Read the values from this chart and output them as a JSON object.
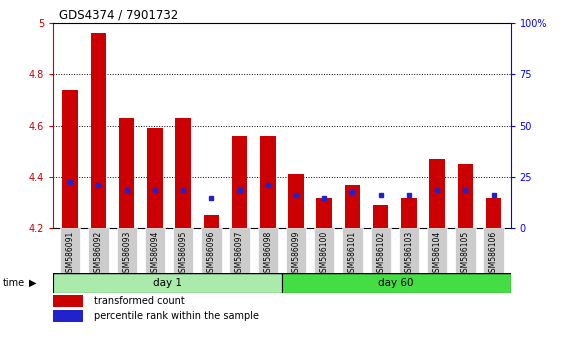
{
  "title": "GDS4374 / 7901732",
  "samples": [
    "GSM586091",
    "GSM586092",
    "GSM586093",
    "GSM586094",
    "GSM586095",
    "GSM586096",
    "GSM586097",
    "GSM586098",
    "GSM586099",
    "GSM586100",
    "GSM586101",
    "GSM586102",
    "GSM586103",
    "GSM586104",
    "GSM586105",
    "GSM586106"
  ],
  "red_values": [
    4.74,
    4.96,
    4.63,
    4.59,
    4.63,
    4.25,
    4.56,
    4.56,
    4.41,
    4.32,
    4.37,
    4.29,
    4.32,
    4.47,
    4.45,
    4.32
  ],
  "blue_values": [
    4.38,
    4.37,
    4.35,
    4.35,
    4.35,
    4.32,
    4.35,
    4.37,
    4.33,
    4.32,
    4.34,
    4.33,
    4.33,
    4.35,
    4.35,
    4.33
  ],
  "day1_samples": 8,
  "day60_samples": 8,
  "ymin": 4.2,
  "ymax": 5.0,
  "yticks_left": [
    4.2,
    4.4,
    4.6,
    4.8,
    5.0
  ],
  "ytick_labels_left": [
    "4.2",
    "4.4",
    "4.6",
    "4.8",
    "5"
  ],
  "yticks_right": [
    0,
    25,
    50,
    75,
    100
  ],
  "ytick_labels_right": [
    "0",
    "25",
    "50",
    "75",
    "100%"
  ],
  "bar_color": "#cc0000",
  "blue_color": "#2222cc",
  "day1_color": "#aaeaaa",
  "day60_color": "#44dd44",
  "tick_label_bg": "#cccccc",
  "legend_red": "transformed count",
  "legend_blue": "percentile rank within the sample",
  "bar_width": 0.55
}
